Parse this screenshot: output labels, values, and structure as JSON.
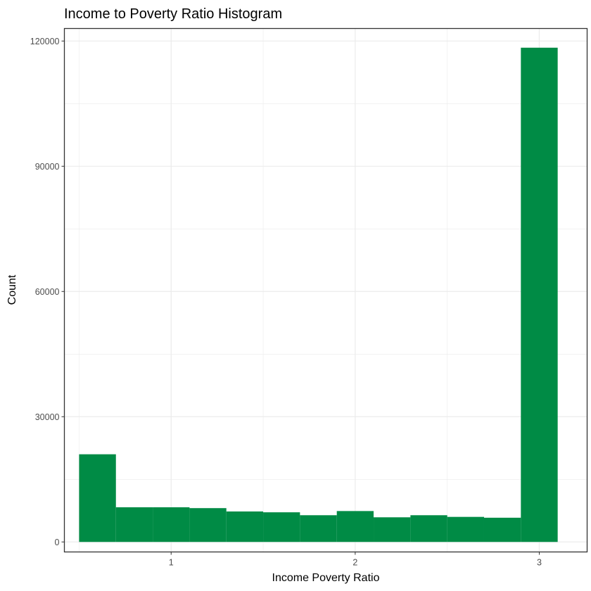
{
  "chart_data": {
    "type": "bar",
    "title": "Income to Poverty Ratio Histogram",
    "xlabel": "Income Poverty Ratio",
    "ylabel": "Count",
    "xlim": [
      0.42,
      3.26
    ],
    "ylim": [
      -2400,
      123000
    ],
    "x_ticks": [
      1,
      2,
      3
    ],
    "y_ticks": [
      0,
      30000,
      60000,
      90000,
      120000
    ],
    "grid": true,
    "colors": {
      "bar": "#008b45",
      "grid": "#ebebeb",
      "panel_border": "#333333"
    },
    "bins": [
      {
        "x_start": 0.5,
        "x_end": 0.7,
        "count": 21000
      },
      {
        "x_start": 0.7,
        "x_end": 0.9,
        "count": 8300
      },
      {
        "x_start": 0.9,
        "x_end": 1.1,
        "count": 8300
      },
      {
        "x_start": 1.1,
        "x_end": 1.3,
        "count": 8100
      },
      {
        "x_start": 1.3,
        "x_end": 1.5,
        "count": 7300
      },
      {
        "x_start": 1.5,
        "x_end": 1.7,
        "count": 7100
      },
      {
        "x_start": 1.7,
        "x_end": 1.9,
        "count": 6400
      },
      {
        "x_start": 1.9,
        "x_end": 2.1,
        "count": 7400
      },
      {
        "x_start": 2.1,
        "x_end": 2.3,
        "count": 5900
      },
      {
        "x_start": 2.3,
        "x_end": 2.5,
        "count": 6400
      },
      {
        "x_start": 2.5,
        "x_end": 2.7,
        "count": 6000
      },
      {
        "x_start": 2.7,
        "x_end": 2.9,
        "count": 5800
      },
      {
        "x_start": 2.9,
        "x_end": 3.1,
        "count": 118400
      }
    ]
  }
}
